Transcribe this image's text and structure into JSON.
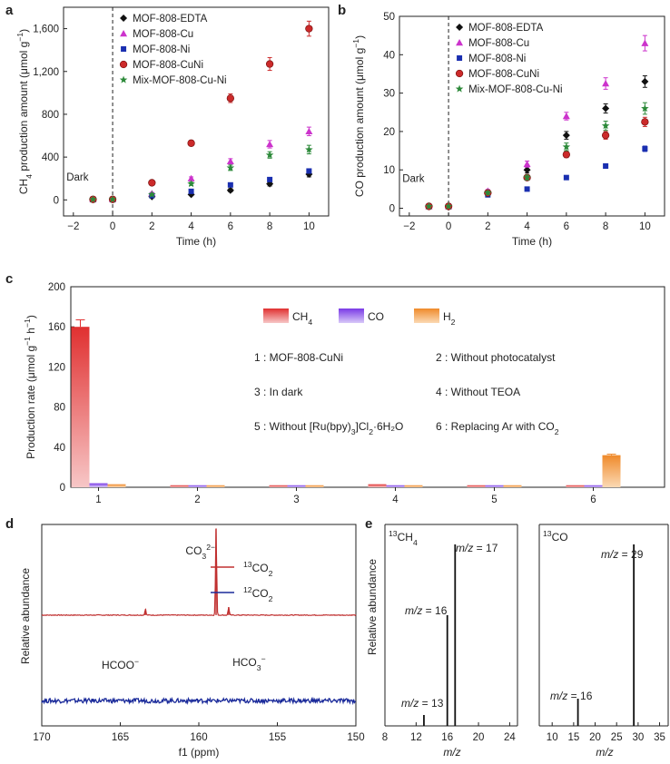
{
  "chart_data": [
    {
      "panel": "a",
      "type": "scatter",
      "xlabel": "Time (h)",
      "ylabel_main": "CH",
      "ylabel_sub": "4",
      "ylabel_tail": " production amount (μmol g",
      "ylabel_sup": "−1",
      "ylabel_end": ")",
      "xlim": [
        -2.5,
        11
      ],
      "ylim": [
        -150,
        1800
      ],
      "xticks": [
        -2,
        0,
        2,
        4,
        6,
        8,
        10
      ],
      "xtick_labels": [
        "−2",
        "0",
        "2",
        "4",
        "6",
        "8",
        "10"
      ],
      "yticks": [
        0,
        400,
        800,
        1200,
        1600
      ],
      "ytick_labels": [
        "0",
        "400",
        "800",
        "1,200",
        "1,600"
      ],
      "annotation": "Dark",
      "dark_line_x": 0,
      "series": [
        {
          "name": "MOF-808-EDTA",
          "color": "#111111",
          "marker": "diamond",
          "x": [
            -1,
            0,
            2,
            4,
            6,
            8,
            10
          ],
          "y": [
            5,
            5,
            30,
            50,
            90,
            150,
            240
          ],
          "err": [
            0,
            0,
            8,
            10,
            15,
            20,
            25
          ]
        },
        {
          "name": "MOF-808-Cu",
          "color": "#cc33cc",
          "marker": "triangle",
          "x": [
            -1,
            0,
            2,
            4,
            6,
            8,
            10
          ],
          "y": [
            5,
            5,
            60,
            200,
            360,
            520,
            640
          ],
          "err": [
            0,
            0,
            10,
            15,
            25,
            35,
            40
          ]
        },
        {
          "name": "MOF-808-Ni",
          "color": "#1a2fb0",
          "marker": "square",
          "x": [
            -1,
            0,
            2,
            4,
            6,
            8,
            10
          ],
          "y": [
            5,
            5,
            40,
            80,
            140,
            190,
            270
          ],
          "err": [
            0,
            0,
            8,
            10,
            12,
            15,
            20
          ]
        },
        {
          "name": "MOF-808-CuNi",
          "color": "#cc2a2a",
          "marker": "circle",
          "x": [
            -1,
            0,
            2,
            4,
            6,
            8,
            10
          ],
          "y": [
            5,
            5,
            160,
            530,
            950,
            1270,
            1600
          ],
          "err": [
            0,
            0,
            15,
            25,
            40,
            60,
            70
          ]
        },
        {
          "name": "Mix-MOF-808-Cu-Ni",
          "color": "#2d8a3a",
          "marker": "star",
          "x": [
            -1,
            0,
            2,
            4,
            6,
            8,
            10
          ],
          "y": [
            5,
            5,
            50,
            150,
            300,
            420,
            470
          ],
          "err": [
            0,
            0,
            10,
            15,
            25,
            30,
            40
          ]
        }
      ]
    },
    {
      "panel": "b",
      "type": "scatter",
      "xlabel": "Time (h)",
      "ylabel_main": "CO production amount (μmol g",
      "ylabel_sup": "−1",
      "ylabel_end": ")",
      "xlim": [
        -2.5,
        11
      ],
      "ylim": [
        -2,
        50
      ],
      "xticks": [
        -2,
        0,
        2,
        4,
        6,
        8,
        10
      ],
      "xtick_labels": [
        "−2",
        "0",
        "2",
        "4",
        "6",
        "8",
        "10"
      ],
      "yticks": [
        0,
        10,
        20,
        30,
        40,
        50
      ],
      "ytick_labels": [
        "0",
        "10",
        "20",
        "30",
        "40",
        "50"
      ],
      "annotation": "Dark",
      "dark_line_x": 0,
      "series": [
        {
          "name": "MOF-808-EDTA",
          "color": "#111111",
          "marker": "diamond",
          "x": [
            -1,
            0,
            2,
            4,
            6,
            8,
            10
          ],
          "y": [
            0.5,
            0.5,
            4.0,
            10.0,
            19.0,
            26.0,
            33.0
          ],
          "err": [
            0,
            0,
            0.4,
            0.8,
            1.0,
            1.2,
            1.5
          ]
        },
        {
          "name": "MOF-808-Cu",
          "color": "#cc33cc",
          "marker": "triangle",
          "x": [
            -1,
            0,
            2,
            4,
            6,
            8,
            10
          ],
          "y": [
            0.5,
            0.5,
            4.5,
            11.5,
            24.0,
            32.5,
            43.0
          ],
          "err": [
            0,
            0,
            0.4,
            0.8,
            1.0,
            1.5,
            2.0
          ]
        },
        {
          "name": "MOF-808-Ni",
          "color": "#1a2fb0",
          "marker": "square",
          "x": [
            -1,
            0,
            2,
            4,
            6,
            8,
            10
          ],
          "y": [
            0.5,
            0.5,
            3.5,
            5.0,
            8.0,
            11.0,
            15.5
          ],
          "err": [
            0,
            0,
            0.3,
            0.4,
            0.5,
            0.6,
            0.7
          ]
        },
        {
          "name": "MOF-808-CuNi",
          "color": "#cc2a2a",
          "marker": "circle",
          "x": [
            -1,
            0,
            2,
            4,
            6,
            8,
            10
          ],
          "y": [
            0.5,
            0.5,
            4.0,
            8.0,
            14.0,
            19.0,
            22.5
          ],
          "err": [
            0,
            0,
            0.4,
            0.6,
            0.8,
            1.0,
            1.2
          ]
        },
        {
          "name": "Mix-MOF-808-Cu-Ni",
          "color": "#2d8a3a",
          "marker": "star",
          "x": [
            -1,
            0,
            2,
            4,
            6,
            8,
            10
          ],
          "y": [
            0.5,
            0.5,
            4.0,
            8.0,
            16.0,
            21.5,
            26.0
          ],
          "err": [
            0,
            0,
            0.4,
            0.6,
            1.0,
            1.2,
            1.5
          ]
        }
      ]
    },
    {
      "panel": "c",
      "type": "bar",
      "xlabel": "",
      "ylabel_main": "Production rate (μmol g",
      "ylabel_sup": "−1",
      "ylabel_mid": " h",
      "ylabel_sup2": "−1",
      "ylabel_end": ")",
      "ylim": [
        0,
        200
      ],
      "yticks": [
        0,
        40,
        80,
        120,
        160,
        200
      ],
      "ytick_labels": [
        "0",
        "40",
        "80",
        "120",
        "160",
        "200"
      ],
      "categories": [
        "1",
        "2",
        "3",
        "4",
        "5",
        "6"
      ],
      "series": [
        {
          "name_main": "CH",
          "name_sub": "4",
          "color_top": "#e03030",
          "color_bottom": "#f7c7c7",
          "values": [
            160,
            2,
            2,
            3,
            2,
            2
          ],
          "err": [
            7,
            0,
            0,
            0,
            0,
            0
          ]
        },
        {
          "name_main": "CO",
          "name_sub": "",
          "color_top": "#7a3ae6",
          "color_bottom": "#d8c8f8",
          "values": [
            4,
            2,
            2,
            2,
            2,
            2
          ],
          "err": [
            0,
            0,
            0,
            0,
            0,
            0
          ]
        },
        {
          "name_main": "H",
          "name_sub": "2",
          "color_top": "#ef8a2a",
          "color_bottom": "#fbd9b4",
          "values": [
            3,
            2,
            2,
            2,
            2,
            32
          ],
          "err": [
            0,
            0,
            0,
            0,
            0,
            1
          ]
        }
      ],
      "notes": [
        {
          "text": "1 : MOF-808-CuNi"
        },
        {
          "text": "2 : Without photocatalyst"
        },
        {
          "text": "3 : In dark"
        },
        {
          "text": "4 : Without TEOA"
        },
        {
          "text_pre": "5 : Without [Ru(bpy)",
          "text_sub": "3",
          "text_mid": "]Cl",
          "text_sub2": "2",
          "text_end": "·6H₂O"
        },
        {
          "text_pre": "6 : Replacing Ar with CO",
          "text_sub": "2"
        }
      ]
    },
    {
      "panel": "d",
      "type": "line",
      "xlabel": "f1 (ppm)",
      "ylabel": "Relative abundance",
      "xlim": [
        170,
        150
      ],
      "xticks": [
        170,
        165,
        160,
        155,
        150
      ],
      "xtick_labels": [
        "170",
        "165",
        "160",
        "155",
        "150"
      ],
      "series": [
        {
          "name_sup": "13",
          "name_main": "CO",
          "name_sub": "2",
          "color": "#c03030",
          "baseline": 0.55,
          "peaks": [
            {
              "ppm": 163.4,
              "height": 0.03
            },
            {
              "ppm": 158.9,
              "height": 0.43
            },
            {
              "ppm": 158.1,
              "height": 0.04
            }
          ]
        },
        {
          "name_sup": "12",
          "name_main": "CO",
          "name_sub": "2",
          "color": "#1a2a9a",
          "baseline": 0.125,
          "peaks": []
        }
      ],
      "annotations": [
        {
          "main": "CO",
          "sub": "3",
          "sup": "2−",
          "ppm": 159.9
        },
        {
          "main": "HCOO",
          "sup": "−",
          "ppm": 165.0
        },
        {
          "main": "HCO",
          "sub": "3",
          "sup": "−",
          "ppm": 156.8
        }
      ]
    },
    {
      "panel": "e",
      "type": "bar",
      "xlabel": "m/z",
      "ylabel": "Relative abundance",
      "subplots": [
        {
          "label_sup": "13",
          "label_main": "CH",
          "label_sub": "4",
          "xlim": [
            8,
            25
          ],
          "xticks": [
            8,
            12,
            16,
            20,
            24
          ],
          "xtick_labels": [
            "8",
            "12",
            "16",
            "20",
            "24"
          ],
          "peaks": [
            {
              "mz": 13,
              "value": 0.06
            },
            {
              "mz": 16,
              "value": 0.61
            },
            {
              "mz": 17,
              "value": 1.0
            }
          ],
          "labels": [
            "m/z = 13",
            "m/z = 16",
            "m/z = 17"
          ]
        },
        {
          "label_sup": "13",
          "label_main": "CO",
          "label_sub": "",
          "xlim": [
            7,
            37
          ],
          "xticks": [
            10,
            15,
            20,
            25,
            30,
            35
          ],
          "xtick_labels": [
            "10",
            "15",
            "20",
            "25",
            "30",
            "35"
          ],
          "peaks": [
            {
              "mz": 16,
              "value": 0.15
            },
            {
              "mz": 29,
              "value": 1.0
            }
          ],
          "labels": [
            "m/z = 16",
            "m/z = 29"
          ]
        }
      ]
    }
  ]
}
